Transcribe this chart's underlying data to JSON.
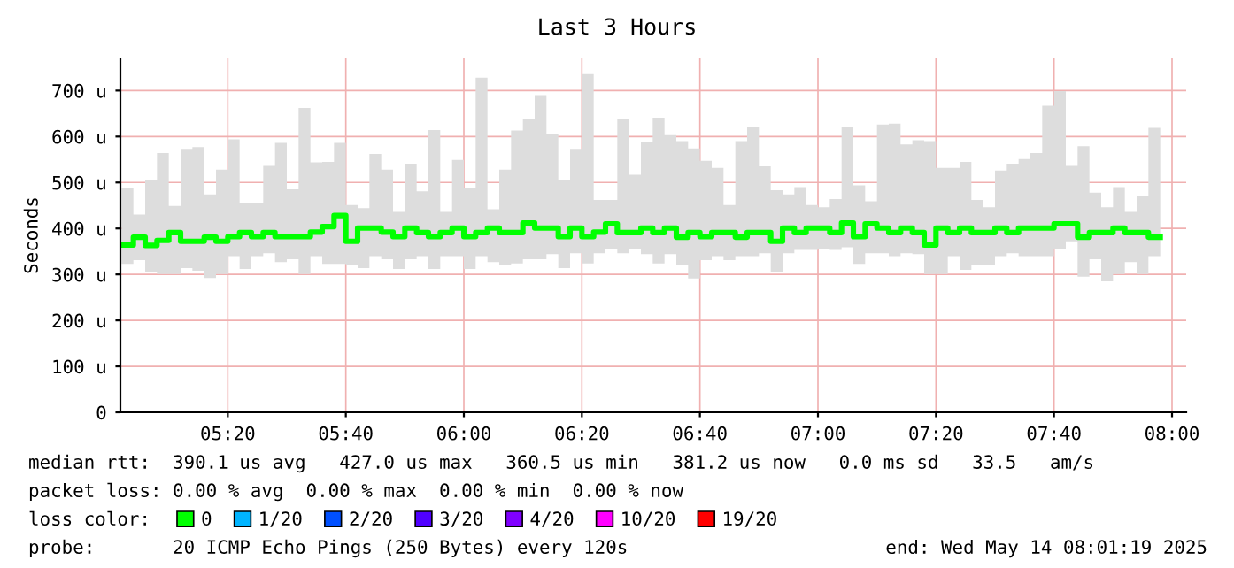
{
  "chart_data": {
    "type": "step",
    "title": "Last 3 Hours",
    "ylabel": "Seconds",
    "x": [
      "2025-05-14T05:02",
      "2025-05-14T05:04",
      "2025-05-14T05:06",
      "2025-05-14T05:08",
      "2025-05-14T05:10",
      "2025-05-14T05:12",
      "2025-05-14T05:14",
      "2025-05-14T05:16",
      "2025-05-14T05:18",
      "2025-05-14T05:20",
      "2025-05-14T05:22",
      "2025-05-14T05:24",
      "2025-05-14T05:26",
      "2025-05-14T05:28",
      "2025-05-14T05:30",
      "2025-05-14T05:32",
      "2025-05-14T05:34",
      "2025-05-14T05:36",
      "2025-05-14T05:38",
      "2025-05-14T05:40",
      "2025-05-14T05:42",
      "2025-05-14T05:44",
      "2025-05-14T05:46",
      "2025-05-14T05:48",
      "2025-05-14T05:50",
      "2025-05-14T05:52",
      "2025-05-14T05:54",
      "2025-05-14T05:56",
      "2025-05-14T05:58",
      "2025-05-14T06:00",
      "2025-05-14T06:02",
      "2025-05-14T06:04",
      "2025-05-14T06:06",
      "2025-05-14T06:08",
      "2025-05-14T06:10",
      "2025-05-14T06:12",
      "2025-05-14T06:14",
      "2025-05-14T06:16",
      "2025-05-14T06:18",
      "2025-05-14T06:20",
      "2025-05-14T06:22",
      "2025-05-14T06:24",
      "2025-05-14T06:26",
      "2025-05-14T06:28",
      "2025-05-14T06:30",
      "2025-05-14T06:32",
      "2025-05-14T06:34",
      "2025-05-14T06:36",
      "2025-05-14T06:38",
      "2025-05-14T06:40",
      "2025-05-14T06:42",
      "2025-05-14T06:44",
      "2025-05-14T06:46",
      "2025-05-14T06:48",
      "2025-05-14T06:50",
      "2025-05-14T06:52",
      "2025-05-14T06:54",
      "2025-05-14T06:56",
      "2025-05-14T06:58",
      "2025-05-14T07:00",
      "2025-05-14T07:02",
      "2025-05-14T07:04",
      "2025-05-14T07:06",
      "2025-05-14T07:08",
      "2025-05-14T07:10",
      "2025-05-14T07:12",
      "2025-05-14T07:14",
      "2025-05-14T07:16",
      "2025-05-14T07:18",
      "2025-05-14T07:20",
      "2025-05-14T07:22",
      "2025-05-14T07:24",
      "2025-05-14T07:26",
      "2025-05-14T07:28",
      "2025-05-14T07:30",
      "2025-05-14T07:32",
      "2025-05-14T07:34",
      "2025-05-14T07:36",
      "2025-05-14T07:38",
      "2025-05-14T07:40",
      "2025-05-14T07:42",
      "2025-05-14T07:44",
      "2025-05-14T07:46",
      "2025-05-14T07:48",
      "2025-05-14T07:50",
      "2025-05-14T07:52",
      "2025-05-14T07:54",
      "2025-05-14T07:56",
      "2025-05-14T07:58"
    ],
    "series": [
      {
        "name": "0",
        "color": "#00ff00",
        "values": [
          364,
          381,
          363,
          374,
          391,
          372,
          372,
          381,
          372,
          382,
          391,
          382,
          391,
          382,
          382,
          382,
          392,
          404,
          428,
          372,
          401,
          401,
          392,
          382,
          401,
          391,
          382,
          391,
          401,
          382,
          391,
          401,
          391,
          391,
          412,
          401,
          401,
          382,
          401,
          382,
          392,
          410,
          391,
          391,
          401,
          391,
          401,
          381,
          391,
          382,
          391,
          391,
          381,
          391,
          391,
          372,
          401,
          391,
          401,
          401,
          391,
          412,
          382,
          410,
          401,
          391,
          401,
          391,
          364,
          401,
          391,
          401,
          391,
          391,
          401,
          391,
          401,
          401,
          401,
          410,
          410,
          381,
          391,
          391,
          401,
          391,
          391,
          381,
          381
        ],
        "lower": [
          323,
          331,
          305,
          301,
          301,
          314,
          308,
          292,
          301,
          340,
          312,
          340,
          346,
          327,
          333,
          301,
          340,
          323,
          323,
          321,
          314,
          340,
          333,
          312,
          333,
          340,
          312,
          340,
          340,
          312,
          340,
          327,
          321,
          324,
          333,
          333,
          344,
          314,
          346,
          324,
          346,
          356,
          346,
          356,
          344,
          324,
          344,
          321,
          291,
          331,
          340,
          331,
          340,
          340,
          346,
          305,
          346,
          353,
          353,
          356,
          353,
          359,
          323,
          346,
          346,
          340,
          346,
          344,
          301,
          301,
          340,
          310,
          321,
          321,
          340,
          346,
          340,
          340,
          340,
          356,
          372,
          295,
          333,
          285,
          301,
          327,
          301,
          340,
          340
        ],
        "upper": [
          487,
          430,
          506,
          564,
          449,
          573,
          577,
          474,
          528,
          594,
          455,
          455,
          536,
          586,
          485,
          662,
          544,
          545,
          586,
          451,
          444,
          562,
          528,
          436,
          541,
          481,
          614,
          436,
          549,
          487,
          728,
          442,
          528,
          613,
          637,
          690,
          605,
          506,
          573,
          736,
          462,
          462,
          637,
          517,
          587,
          641,
          603,
          590,
          574,
          547,
          532,
          451,
          590,
          622,
          535,
          483,
          474,
          490,
          451,
          446,
          464,
          622,
          494,
          459,
          626,
          628,
          583,
          592,
          590,
          532,
          532,
          545,
          462,
          446,
          526,
          541,
          551,
          564,
          667,
          699,
          536,
          579,
          478,
          446,
          490,
          436,
          471,
          619,
          619
        ]
      },
      {
        "name": "1/20",
        "color": "#00b4ff",
        "values": [
          null,
          null,
          null,
          null,
          null,
          null,
          null,
          null,
          null,
          null,
          null,
          null,
          null,
          null,
          null,
          null,
          null,
          null,
          null,
          null,
          null,
          null,
          null,
          null,
          null,
          null,
          null,
          null,
          null,
          null,
          null,
          null,
          null,
          null,
          null,
          null,
          null,
          null,
          null,
          null,
          null,
          null,
          null,
          null,
          null,
          null,
          null,
          null,
          null,
          null,
          null,
          null,
          null,
          null,
          null,
          null,
          null,
          null,
          null,
          null,
          null,
          null,
          null,
          null,
          null,
          null,
          null,
          null,
          null,
          null,
          null,
          null,
          null,
          null,
          null,
          null,
          null,
          null,
          null,
          null,
          null,
          null,
          null,
          null,
          null,
          null,
          null,
          null,
          null
        ]
      },
      {
        "name": "2/20",
        "color": "#0050ff",
        "values": [
          null,
          null,
          null,
          null,
          null,
          null,
          null,
          null,
          null,
          null,
          null,
          null,
          null,
          null,
          null,
          null,
          null,
          null,
          null,
          null,
          null,
          null,
          null,
          null,
          null,
          null,
          null,
          null,
          null,
          null,
          null,
          null,
          null,
          null,
          null,
          null,
          null,
          null,
          null,
          null,
          null,
          null,
          null,
          null,
          null,
          null,
          null,
          null,
          null,
          null,
          null,
          null,
          null,
          null,
          null,
          null,
          null,
          null,
          null,
          null,
          null,
          null,
          null,
          null,
          null,
          null,
          null,
          null,
          null,
          null,
          null,
          null,
          null,
          null,
          null,
          null,
          null,
          null,
          null,
          null,
          null,
          null,
          null,
          null,
          null,
          null,
          null,
          null,
          null
        ]
      },
      {
        "name": "3/20",
        "color": "#5000ff",
        "values": [
          null,
          null,
          null,
          null,
          null,
          null,
          null,
          null,
          null,
          null,
          null,
          null,
          null,
          null,
          null,
          null,
          null,
          null,
          null,
          null,
          null,
          null,
          null,
          null,
          null,
          null,
          null,
          null,
          null,
          null,
          null,
          null,
          null,
          null,
          null,
          null,
          null,
          null,
          null,
          null,
          null,
          null,
          null,
          null,
          null,
          null,
          null,
          null,
          null,
          null,
          null,
          null,
          null,
          null,
          null,
          null,
          null,
          null,
          null,
          null,
          null,
          null,
          null,
          null,
          null,
          null,
          null,
          null,
          null,
          null,
          null,
          null,
          null,
          null,
          null,
          null,
          null,
          null,
          null,
          null,
          null,
          null,
          null,
          null,
          null,
          null,
          null,
          null,
          null
        ]
      },
      {
        "name": "4/20",
        "color": "#8000ff",
        "values": [
          null,
          null,
          null,
          null,
          null,
          null,
          null,
          null,
          null,
          null,
          null,
          null,
          null,
          null,
          null,
          null,
          null,
          null,
          null,
          null,
          null,
          null,
          null,
          null,
          null,
          null,
          null,
          null,
          null,
          null,
          null,
          null,
          null,
          null,
          null,
          null,
          null,
          null,
          null,
          null,
          null,
          null,
          null,
          null,
          null,
          null,
          null,
          null,
          null,
          null,
          null,
          null,
          null,
          null,
          null,
          null,
          null,
          null,
          null,
          null,
          null,
          null,
          null,
          null,
          null,
          null,
          null,
          null,
          null,
          null,
          null,
          null,
          null,
          null,
          null,
          null,
          null,
          null,
          null,
          null,
          null,
          null,
          null,
          null,
          null,
          null,
          null,
          null,
          null
        ]
      },
      {
        "name": "10/20",
        "color": "#ff00ff",
        "values": [
          null,
          null,
          null,
          null,
          null,
          null,
          null,
          null,
          null,
          null,
          null,
          null,
          null,
          null,
          null,
          null,
          null,
          null,
          null,
          null,
          null,
          null,
          null,
          null,
          null,
          null,
          null,
          null,
          null,
          null,
          null,
          null,
          null,
          null,
          null,
          null,
          null,
          null,
          null,
          null,
          null,
          null,
          null,
          null,
          null,
          null,
          null,
          null,
          null,
          null,
          null,
          null,
          null,
          null,
          null,
          null,
          null,
          null,
          null,
          null,
          null,
          null,
          null,
          null,
          null,
          null,
          null,
          null,
          null,
          null,
          null,
          null,
          null,
          null,
          null,
          null,
          null,
          null,
          null,
          null,
          null,
          null,
          null,
          null,
          null,
          null,
          null,
          null,
          null
        ]
      },
      {
        "name": "19/20",
        "color": "#ff0000",
        "values": [
          null,
          null,
          null,
          null,
          null,
          null,
          null,
          null,
          null,
          null,
          null,
          null,
          null,
          null,
          null,
          null,
          null,
          null,
          null,
          null,
          null,
          null,
          null,
          null,
          null,
          null,
          null,
          null,
          null,
          null,
          null,
          null,
          null,
          null,
          null,
          null,
          null,
          null,
          null,
          null,
          null,
          null,
          null,
          null,
          null,
          null,
          null,
          null,
          null,
          null,
          null,
          null,
          null,
          null,
          null,
          null,
          null,
          null,
          null,
          null,
          null,
          null,
          null,
          null,
          null,
          null,
          null,
          null,
          null,
          null,
          null,
          null,
          null,
          null,
          null,
          null,
          null,
          null,
          null,
          null,
          null,
          null,
          null,
          null,
          null,
          null,
          null,
          null,
          null
        ]
      }
    ],
    "legend_title": "loss color:",
    "legend": "bottom",
    "xlim": [
      "2025-05-14T05:01:48",
      "2025-05-14T08:02:24"
    ],
    "xticks": [
      {
        "value": "2025-05-14T05:20",
        "label": "05:20"
      },
      {
        "value": "2025-05-14T05:40",
        "label": "05:40"
      },
      {
        "value": "2025-05-14T06:00",
        "label": "06:00"
      },
      {
        "value": "2025-05-14T06:20",
        "label": "06:20"
      },
      {
        "value": "2025-05-14T06:40",
        "label": "06:40"
      },
      {
        "value": "2025-05-14T07:00",
        "label": "07:00"
      },
      {
        "value": "2025-05-14T07:20",
        "label": "07:20"
      },
      {
        "value": "2025-05-14T07:40",
        "label": "07:40"
      },
      {
        "value": "2025-05-14T08:00",
        "label": "08:00"
      }
    ],
    "ylim": [
      0,
      770
    ],
    "yticks": [
      0,
      {
        "value": 100,
        "label": "100 u"
      },
      {
        "value": 200,
        "label": "200 u"
      },
      {
        "value": 300,
        "label": "300 u"
      },
      {
        "value": 400,
        "label": "400 u"
      },
      {
        "value": 500,
        "label": "500 u"
      },
      {
        "value": 600,
        "label": "600 u"
      },
      {
        "value": 700,
        "label": "700 u"
      }
    ],
    "grid": true,
    "annotations": [
      "median rtt:  390.1 us avg   427.0 us max   360.5 us min   381.2 us now   0.0 ms sd   33.5   am/s",
      "packet loss: 0.00 % avg  0.00 % max  0.00 % min  0.00 % now",
      "probe:       20 ICMP Echo Pings (250 Bytes) every 120s",
      "end: Wed May 14 08:01:19 2025"
    ]
  }
}
